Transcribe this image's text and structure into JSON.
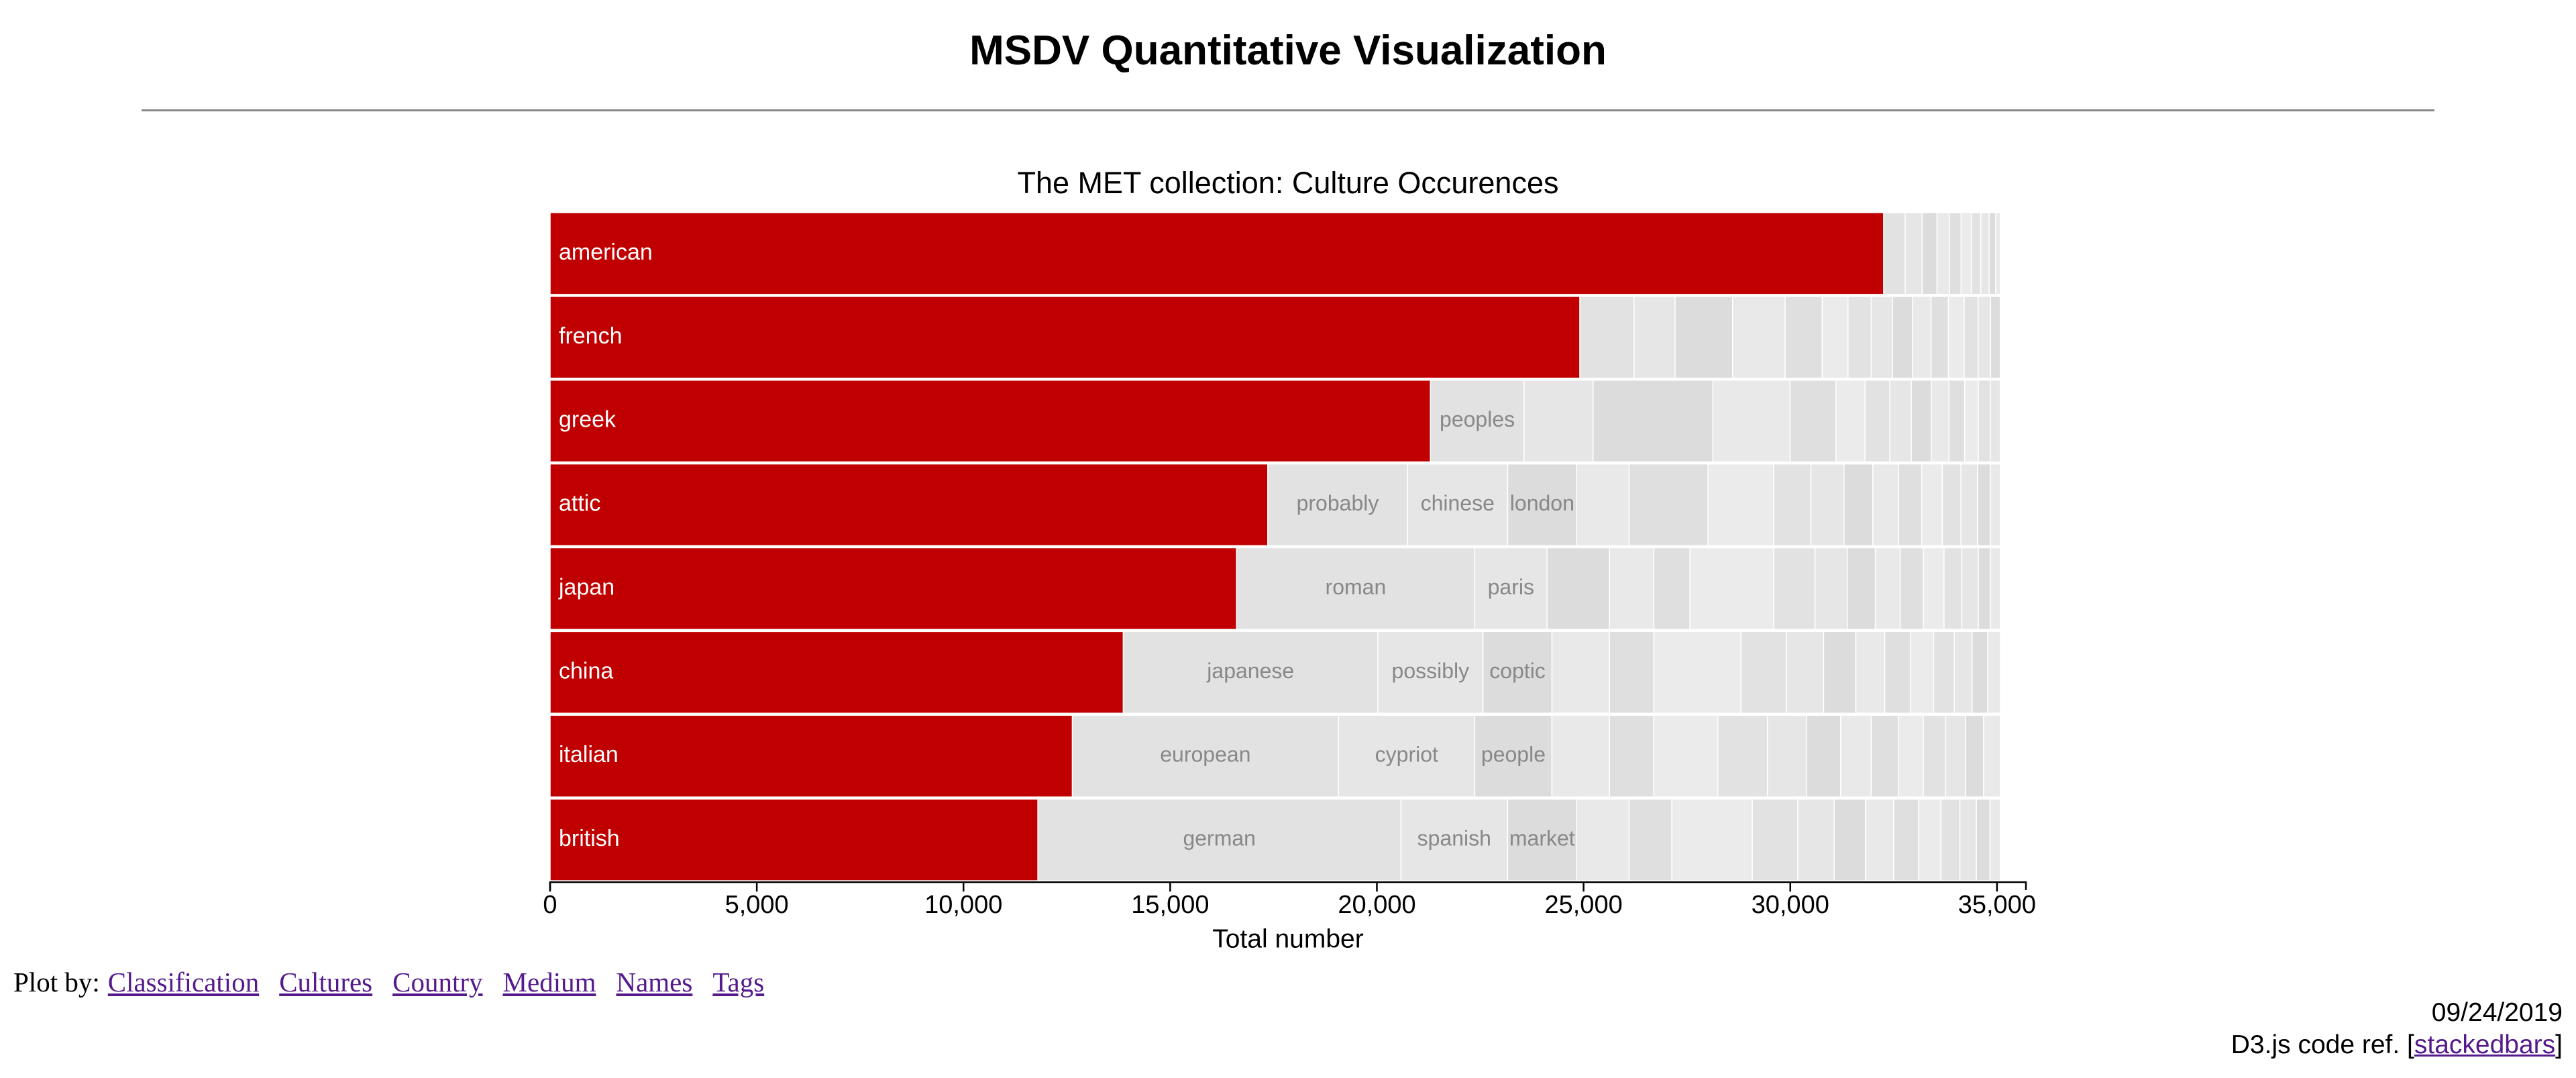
{
  "header": {
    "title": "MSDV Quantitative Visualization"
  },
  "chart_data": {
    "type": "stacked-bar",
    "orientation": "horizontal",
    "title": "The MET collection: Culture Occurences",
    "xlabel": "Total number",
    "highlight_color": "#c00000",
    "segment_colors": [
      "#ebebeb",
      "#e2e2e2",
      "#e6e6e6",
      "#dcdcdc",
      "#e9e9e9",
      "#dfdfdf"
    ],
    "label_color": "#888888",
    "xlim": [
      0,
      35700
    ],
    "xticks": [
      0,
      {
        "value": 5000,
        "label": "5,000"
      },
      {
        "value": 10000,
        "label": "10,000"
      },
      {
        "value": 15000,
        "label": "15,000"
      },
      {
        "value": 20000,
        "label": "20,000"
      },
      {
        "value": 25000,
        "label": "25,000"
      },
      {
        "value": 30000,
        "label": "30,000"
      },
      {
        "value": 35000,
        "label": "35,000"
      }
    ],
    "categories": [
      "american",
      "french",
      "greek",
      "attic",
      "japan",
      "china",
      "italian",
      "british"
    ],
    "stacks": [
      [
        {
          "value": 32260
        },
        {
          "name": null,
          "value": 520
        },
        {
          "name": null,
          "value": 410
        },
        {
          "name": null,
          "value": 360
        },
        {
          "name": null,
          "value": 300
        },
        {
          "name": null,
          "value": 280
        },
        {
          "name": null,
          "value": 250
        },
        {
          "name": null,
          "value": 230
        },
        {
          "name": null,
          "value": 200
        },
        {
          "name": null,
          "value": 160
        },
        {
          "name": null,
          "value": 111
        }
      ],
      [
        {
          "value": 24910
        },
        {
          "name": null,
          "value": 1311
        },
        {
          "name": null,
          "value": 993
        },
        {
          "name": null,
          "value": 1390
        },
        {
          "name": null,
          "value": 1271
        },
        {
          "name": null,
          "value": 900
        },
        {
          "name": null,
          "value": 620
        },
        {
          "name": null,
          "value": 560
        },
        {
          "name": null,
          "value": 520
        },
        {
          "name": null,
          "value": 480
        },
        {
          "name": null,
          "value": 450
        },
        {
          "name": null,
          "value": 420
        },
        {
          "name": null,
          "value": 380
        },
        {
          "name": null,
          "value": 340
        },
        {
          "name": null,
          "value": 300
        },
        {
          "name": null,
          "value": 235
        }
      ],
      [
        {
          "value": 21295
        },
        {
          "name": "peoples",
          "value": 2265
        },
        {
          "name": null,
          "value": 1669
        },
        {
          "name": null,
          "value": 2900
        },
        {
          "name": null,
          "value": 1867
        },
        {
          "name": null,
          "value": 1112
        },
        {
          "name": null,
          "value": 700
        },
        {
          "name": null,
          "value": 600
        },
        {
          "name": null,
          "value": 520
        },
        {
          "name": null,
          "value": 480
        },
        {
          "name": null,
          "value": 430
        },
        {
          "name": null,
          "value": 380
        },
        {
          "name": null,
          "value": 330
        },
        {
          "name": null,
          "value": 290
        },
        {
          "name": null,
          "value": 243
        }
      ],
      [
        {
          "value": 17362
        },
        {
          "name": "probably",
          "value": 3377
        },
        {
          "name": "chinese",
          "value": 2424
        },
        {
          "name": "london",
          "value": 1669
        },
        {
          "name": null,
          "value": 1271
        },
        {
          "name": null,
          "value": 1907
        },
        {
          "name": null,
          "value": 1589
        },
        {
          "name": null,
          "value": 900
        },
        {
          "name": null,
          "value": 800
        },
        {
          "name": null,
          "value": 700
        },
        {
          "name": null,
          "value": 620
        },
        {
          "name": null,
          "value": 560
        },
        {
          "name": null,
          "value": 500
        },
        {
          "name": null,
          "value": 450
        },
        {
          "name": null,
          "value": 400
        },
        {
          "name": null,
          "value": 310
        },
        {
          "name": null,
          "value": 243
        }
      ],
      [
        {
          "value": 16607
        },
        {
          "name": "roman",
          "value": 5761
        },
        {
          "name": "paris",
          "value": 1748
        },
        {
          "name": null,
          "value": 1510
        },
        {
          "name": null,
          "value": 1073
        },
        {
          "name": null,
          "value": 874
        },
        {
          "name": null,
          "value": 2026
        },
        {
          "name": null,
          "value": 1000
        },
        {
          "name": null,
          "value": 780
        },
        {
          "name": null,
          "value": 680
        },
        {
          "name": null,
          "value": 600
        },
        {
          "name": null,
          "value": 560
        },
        {
          "name": null,
          "value": 500
        },
        {
          "name": null,
          "value": 430
        },
        {
          "name": null,
          "value": 400
        },
        {
          "name": null,
          "value": 290
        },
        {
          "name": null,
          "value": 243
        }
      ],
      [
        {
          "value": 13866
        },
        {
          "name": "japanese",
          "value": 6158
        },
        {
          "name": "possibly",
          "value": 2543
        },
        {
          "name": "coptic",
          "value": 1669
        },
        {
          "name": null,
          "value": 1391
        },
        {
          "name": null,
          "value": 1073
        },
        {
          "name": null,
          "value": 2106
        },
        {
          "name": null,
          "value": 1100
        },
        {
          "name": null,
          "value": 900
        },
        {
          "name": null,
          "value": 780
        },
        {
          "name": null,
          "value": 700
        },
        {
          "name": null,
          "value": 620
        },
        {
          "name": null,
          "value": 560
        },
        {
          "name": null,
          "value": 500
        },
        {
          "name": null,
          "value": 430
        },
        {
          "name": null,
          "value": 380
        },
        {
          "name": null,
          "value": 307
        }
      ],
      [
        {
          "value": 12634
        },
        {
          "name": "european",
          "value": 6436
        },
        {
          "name": "cypriot",
          "value": 3298
        },
        {
          "name": "people",
          "value": 1867
        },
        {
          "name": null,
          "value": 1391
        },
        {
          "name": null,
          "value": 1073
        },
        {
          "name": null,
          "value": 1549
        },
        {
          "name": null,
          "value": 1200
        },
        {
          "name": null,
          "value": 950
        },
        {
          "name": null,
          "value": 820
        },
        {
          "name": null,
          "value": 740
        },
        {
          "name": null,
          "value": 660
        },
        {
          "name": null,
          "value": 600
        },
        {
          "name": null,
          "value": 540
        },
        {
          "name": null,
          "value": 480
        },
        {
          "name": null,
          "value": 440
        },
        {
          "name": null,
          "value": 404
        }
      ],
      [
        {
          "value": 11800
        },
        {
          "name": "german",
          "value": 8780
        },
        {
          "name": "spanish",
          "value": 2582
        },
        {
          "name": "market",
          "value": 1669
        },
        {
          "name": null,
          "value": 1271
        },
        {
          "name": null,
          "value": 1033
        },
        {
          "name": null,
          "value": 1947
        },
        {
          "name": null,
          "value": 1100
        },
        {
          "name": null,
          "value": 880
        },
        {
          "name": null,
          "value": 760
        },
        {
          "name": null,
          "value": 680
        },
        {
          "name": null,
          "value": 600
        },
        {
          "name": null,
          "value": 540
        },
        {
          "name": null,
          "value": 460
        },
        {
          "name": null,
          "value": 400
        },
        {
          "name": null,
          "value": 330
        },
        {
          "name": null,
          "value": 249
        }
      ]
    ]
  },
  "nav": {
    "label": "Plot by:",
    "links": [
      "Classification",
      "Cultures",
      "Country",
      "Medium",
      "Names",
      "Tags"
    ]
  },
  "footer": {
    "date": "09/24/2019",
    "ref_prefix": "D3.js code ref. [",
    "ref_link": "stackedbars",
    "ref_suffix": "]"
  }
}
